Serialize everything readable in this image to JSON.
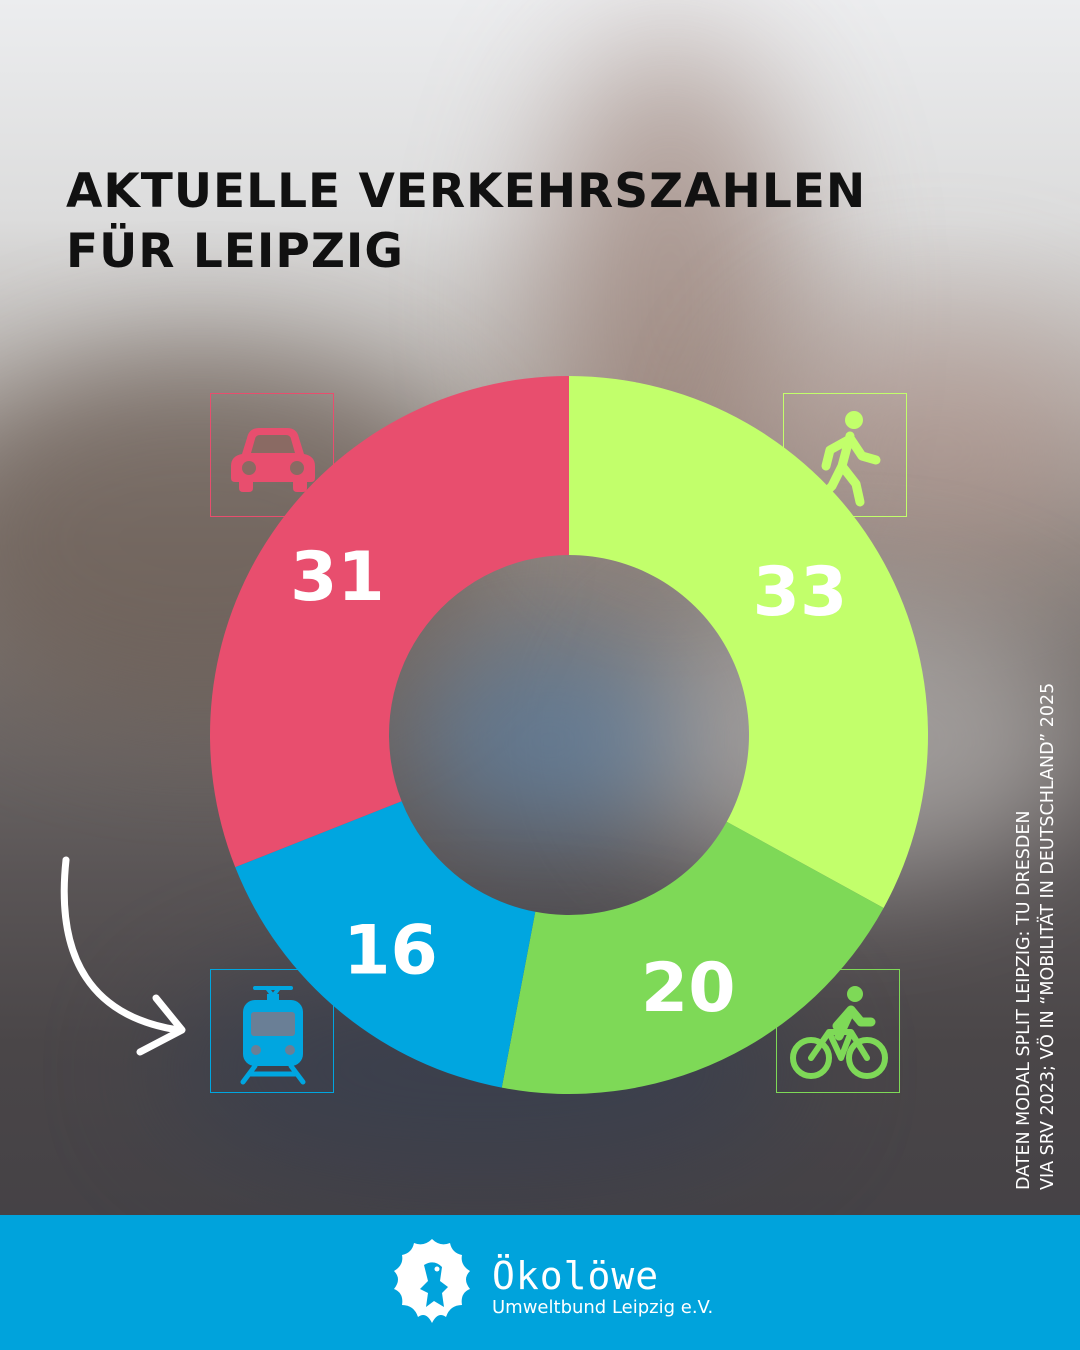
{
  "title": {
    "line1": "AKTUELLE VERKEHRSZAHLEN",
    "line2": "FÜR LEIPZIG"
  },
  "chart_data": {
    "type": "pie",
    "style": "donut",
    "title": "AKTUELLE VERKEHRSZAHLEN FÜR LEIPZIG",
    "slices": [
      {
        "key": "walking",
        "value": 33,
        "label": "33",
        "color": "#c2ff6b",
        "icon": "pedestrian-icon"
      },
      {
        "key": "cycling",
        "value": 20,
        "label": "20",
        "color": "#7ed957",
        "icon": "bicycle-icon"
      },
      {
        "key": "public-transport",
        "value": 16,
        "label": "16",
        "color": "#00a6e0",
        "icon": "tram-icon"
      },
      {
        "key": "car",
        "value": 31,
        "label": "31",
        "color": "#e84e6e",
        "icon": "car-icon"
      }
    ]
  },
  "source": {
    "line1": "DATEN MODAL SPLIT LEIPZIG: TU DRESDEN",
    "line2": "VIA SRV 2023; VÖ IN “MOBILITÄT IN DEUTSCHLAND” 2025"
  },
  "footer": {
    "brand": "Ökolöwe",
    "tagline": "Umweltbund Leipzig e.V.",
    "logo_icon": "lion-logo-icon",
    "color": "#00a3dc"
  }
}
